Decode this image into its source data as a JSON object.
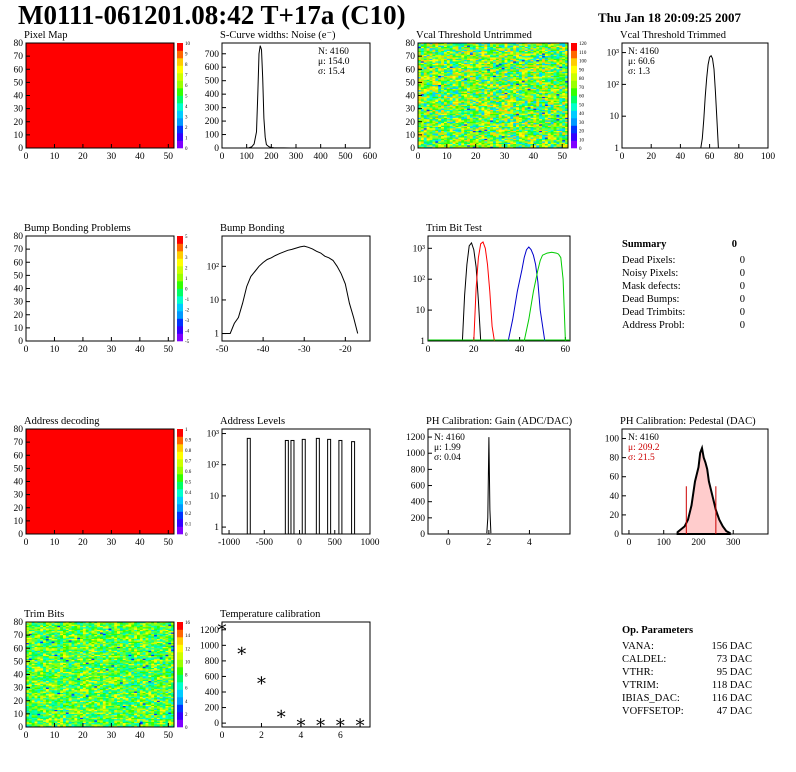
{
  "header": {
    "title": "M0111-061201.08:42 T+17a (C10)",
    "date": "Thu Jan 18 20:09:25 2007"
  },
  "colors": {
    "map_red": "#ff0000",
    "hist_line": "#000000",
    "trim_red": "#ff0000",
    "trim_blue": "#0000cc",
    "trim_green": "#00cc00",
    "pedestal_fill": "#ffcccc",
    "pedestal_mark": "#cc0000"
  },
  "chart_data": [
    {
      "id": "pixel-map",
      "type": "heatmap",
      "title": "Pixel Map",
      "x_ticks": [
        "0",
        "10",
        "20",
        "30",
        "40",
        "50"
      ],
      "y_ticks": [
        "0",
        "10",
        "20",
        "30",
        "40",
        "50",
        "60",
        "70",
        "80"
      ],
      "xlim": [
        0,
        52
      ],
      "ylim": [
        0,
        80
      ],
      "fill": "uniform-red",
      "colorbar": [
        0,
        1,
        2,
        3,
        4,
        5,
        6,
        7,
        8,
        9,
        10
      ]
    },
    {
      "id": "scurve-noise",
      "type": "line",
      "title": "S-Curve widths: Noise (e⁻)",
      "x_ticks": [
        "0",
        "100",
        "200",
        "300",
        "400",
        "500",
        "600"
      ],
      "y_ticks": [
        "0",
        "100",
        "200",
        "300",
        "400",
        "500",
        "600",
        "700"
      ],
      "xlim": [
        0,
        600
      ],
      "ylim": [
        0,
        780
      ],
      "x": [
        0,
        100,
        110,
        120,
        130,
        140,
        145,
        150,
        155,
        160,
        165,
        170,
        175,
        180,
        190,
        200,
        210,
        230,
        250,
        280,
        600
      ],
      "y": [
        0,
        0,
        2,
        8,
        30,
        120,
        400,
        700,
        760,
        730,
        520,
        220,
        80,
        25,
        10,
        4,
        2,
        1,
        1,
        0,
        0
      ],
      "stats": [
        "N: 4160",
        "μ: 154.0",
        "σ: 15.4"
      ]
    },
    {
      "id": "vcal-untrimmed",
      "type": "heatmap",
      "title": "Vcal Threshold Untrimmed",
      "x_ticks": [
        "0",
        "10",
        "20",
        "30",
        "40",
        "50"
      ],
      "y_ticks": [
        "0",
        "10",
        "20",
        "30",
        "40",
        "50",
        "60",
        "70",
        "80"
      ],
      "xlim": [
        0,
        52
      ],
      "ylim": [
        0,
        80
      ],
      "fill": "noise-green-yellow",
      "colorbar": [
        0,
        10,
        20,
        30,
        40,
        50,
        60,
        70,
        80,
        90,
        100,
        110,
        120
      ]
    },
    {
      "id": "vcal-trimmed",
      "type": "line",
      "title": "Vcal Threshold Trimmed",
      "yscale": "log",
      "x_ticks": [
        "0",
        "20",
        "40",
        "60",
        "80",
        "100"
      ],
      "y_ticks": [
        "1",
        "10",
        "10²",
        "10³"
      ],
      "xlim": [
        0,
        100
      ],
      "ylim": [
        1,
        2000
      ],
      "x": [
        0,
        54,
        55,
        56,
        57,
        58,
        59,
        60,
        61,
        62,
        63,
        64,
        65,
        66,
        100
      ],
      "y": [
        0,
        0,
        2,
        8,
        40,
        160,
        420,
        720,
        800,
        650,
        300,
        60,
        8,
        0,
        0
      ],
      "stats": [
        "N: 4160",
        "μ: 60.6",
        "σ:  1.3"
      ]
    },
    {
      "id": "bump-problems",
      "type": "heatmap",
      "title": "Bump Bonding Problems",
      "x_ticks": [
        "0",
        "10",
        "20",
        "30",
        "40",
        "50"
      ],
      "y_ticks": [
        "0",
        "10",
        "20",
        "30",
        "40",
        "50",
        "60",
        "70",
        "80"
      ],
      "xlim": [
        0,
        52
      ],
      "ylim": [
        0,
        80
      ],
      "fill": "empty",
      "colorbar": [
        -5,
        -4,
        -3,
        -2,
        -1,
        0,
        1,
        2,
        3,
        4,
        5
      ]
    },
    {
      "id": "bump-bonding",
      "type": "line",
      "title": "Bump Bonding",
      "yscale": "log",
      "x_ticks": [
        "-50",
        "-40",
        "-30",
        "-20"
      ],
      "y_ticks": [
        "1",
        "10",
        "10²"
      ],
      "xlim": [
        -50,
        -14
      ],
      "ylim": [
        0.6,
        800
      ],
      "x": [
        -50,
        -49,
        -48,
        -47,
        -46,
        -45,
        -44,
        -43,
        -42,
        -41,
        -40,
        -39,
        -38,
        -37,
        -36,
        -35,
        -34,
        -33,
        -32,
        -31,
        -30,
        -29,
        -28,
        -27,
        -26,
        -25,
        -24,
        -23,
        -22,
        -21,
        -20,
        -19,
        -18,
        -17
      ],
      "y": [
        1,
        1,
        1,
        2,
        3,
        8,
        25,
        50,
        70,
        100,
        130,
        160,
        180,
        210,
        240,
        270,
        300,
        320,
        350,
        380,
        400,
        370,
        330,
        280,
        250,
        200,
        180,
        150,
        100,
        60,
        30,
        8,
        3,
        1
      ],
      "stats": []
    },
    {
      "id": "trim-bit-test",
      "type": "line",
      "title": "Trim Bit Test",
      "yscale": "log",
      "x_ticks": [
        "0",
        "20",
        "40",
        "60"
      ],
      "y_ticks": [
        "1",
        "10",
        "10²",
        "10³"
      ],
      "xlim": [
        0,
        62
      ],
      "ylim": [
        1,
        2500
      ],
      "series": [
        {
          "color": "#000000",
          "x": [
            15,
            16,
            17,
            18,
            19,
            20,
            21,
            22,
            23
          ],
          "y": [
            1,
            30,
            300,
            1200,
            1500,
            900,
            250,
            20,
            1
          ]
        },
        {
          "color": "#ff0000",
          "x": [
            20,
            21,
            22,
            23,
            24,
            25,
            26,
            27,
            28,
            29
          ],
          "y": [
            1,
            50,
            500,
            1400,
            1600,
            1000,
            300,
            40,
            3,
            1
          ]
        },
        {
          "color": "#0000cc",
          "x": [
            35,
            37,
            39,
            41,
            42,
            43,
            44,
            45,
            46,
            47,
            48,
            49,
            51
          ],
          "y": [
            1,
            5,
            40,
            200,
            500,
            900,
            1100,
            900,
            600,
            300,
            80,
            10,
            1
          ]
        },
        {
          "color": "#00cc00",
          "x": [
            42,
            44,
            46,
            48,
            49,
            50,
            52,
            54,
            56,
            57,
            58,
            59,
            60
          ],
          "y": [
            1,
            5,
            40,
            200,
            400,
            600,
            700,
            750,
            700,
            650,
            500,
            100,
            1
          ]
        }
      ],
      "stats": []
    },
    {
      "id": "address-decoding",
      "type": "heatmap",
      "title": "Address decoding",
      "x_ticks": [
        "0",
        "10",
        "20",
        "30",
        "40",
        "50"
      ],
      "y_ticks": [
        "0",
        "10",
        "20",
        "30",
        "40",
        "50",
        "60",
        "70",
        "80"
      ],
      "xlim": [
        0,
        52
      ],
      "ylim": [
        0,
        80
      ],
      "fill": "uniform-red",
      "colorbar": [
        0,
        0.1,
        0.2,
        0.3,
        0.4,
        0.5,
        0.6,
        0.7,
        0.8,
        0.9,
        1
      ]
    },
    {
      "id": "address-levels",
      "type": "bar",
      "title": "Address Levels",
      "yscale": "log",
      "x_ticks": [
        "-1000",
        "-500",
        "0",
        "500",
        "1000"
      ],
      "y_ticks": [
        "1",
        "10",
        "10²",
        "10³"
      ],
      "xlim": [
        -1100,
        1000
      ],
      "ylim": [
        0.6,
        1400
      ],
      "x": [
        -720,
        -180,
        -100,
        60,
        260,
        420,
        580,
        760
      ],
      "y": [
        700,
        600,
        600,
        650,
        700,
        650,
        600,
        550
      ],
      "stats": []
    },
    {
      "id": "ph-gain",
      "type": "line",
      "title": "PH Calibration: Gain (ADC/DAC)",
      "x_ticks": [
        "0",
        "2",
        "4"
      ],
      "y_ticks": [
        "0",
        "200",
        "400",
        "600",
        "800",
        "1000",
        "1200"
      ],
      "xlim": [
        -1,
        6
      ],
      "ylim": [
        0,
        1300
      ],
      "x": [
        1.9,
        1.95,
        2.0,
        2.05,
        2.1
      ],
      "y": [
        10,
        200,
        1200,
        300,
        10
      ],
      "stats": [
        "N: 4160",
        "μ: 1.99",
        "σ: 0.04"
      ]
    },
    {
      "id": "ph-pedestal",
      "type": "area",
      "title": "PH Calibration: Pedestal (DAC)",
      "x_ticks": [
        "0",
        "100",
        "200",
        "300"
      ],
      "y_ticks": [
        "0",
        "20",
        "40",
        "60",
        "80",
        "100"
      ],
      "xlim": [
        -20,
        400
      ],
      "ylim": [
        0,
        110
      ],
      "x": [
        140,
        160,
        170,
        180,
        190,
        200,
        205,
        210,
        215,
        220,
        225,
        230,
        240,
        250,
        260,
        270,
        280,
        290
      ],
      "y": [
        2,
        8,
        15,
        30,
        55,
        70,
        85,
        90,
        80,
        75,
        68,
        55,
        40,
        25,
        15,
        8,
        3,
        1
      ],
      "markers_x": [
        165,
        250
      ],
      "stats": [
        "N: 4160",
        "μ: 209.2",
        "σ: 21.5"
      ]
    },
    {
      "id": "trim-bits",
      "type": "heatmap",
      "title": "Trim Bits",
      "x_ticks": [
        "0",
        "10",
        "20",
        "30",
        "40",
        "50"
      ],
      "y_ticks": [
        "0",
        "10",
        "20",
        "30",
        "40",
        "50",
        "60",
        "70",
        "80"
      ],
      "xlim": [
        0,
        52
      ],
      "ylim": [
        0,
        80
      ],
      "fill": "noise-green",
      "colorbar": [
        0,
        2,
        4,
        6,
        8,
        10,
        12,
        14,
        16
      ]
    },
    {
      "id": "temperature-calibration",
      "type": "scatter",
      "title": "Temperature calibration",
      "x_ticks": [
        "0",
        "2",
        "4",
        "6"
      ],
      "y_ticks": [
        "0",
        "200",
        "400",
        "600",
        "800",
        "1000",
        "1200"
      ],
      "xlim": [
        0,
        7.5
      ],
      "ylim": [
        -50,
        1300
      ],
      "x": [
        0,
        1,
        2,
        3,
        4,
        5,
        6,
        7
      ],
      "y": [
        1230,
        920,
        540,
        110,
        0,
        0,
        0,
        0
      ],
      "stats": []
    }
  ],
  "summary": {
    "title": "Summary",
    "total": "0",
    "rows": [
      {
        "label": "Dead Pixels:",
        "value": "0"
      },
      {
        "label": "Noisy Pixels:",
        "value": "0"
      },
      {
        "label": "Mask defects:",
        "value": "0"
      },
      {
        "label": "Dead Bumps:",
        "value": "0"
      },
      {
        "label": "Dead Trimbits:",
        "value": "0"
      },
      {
        "label": "Address Probl:",
        "value": "0"
      }
    ]
  },
  "op_params": {
    "title": "Op. Parameters",
    "rows": [
      {
        "label": "VANA:",
        "value": "156 DAC"
      },
      {
        "label": "CALDEL:",
        "value": "73 DAC"
      },
      {
        "label": "VTHR:",
        "value": "95 DAC"
      },
      {
        "label": "VTRIM:",
        "value": "118 DAC"
      },
      {
        "label": "IBIAS_DAC:",
        "value": "116 DAC"
      },
      {
        "label": "VOFFSETOP:",
        "value": "47 DAC"
      }
    ]
  }
}
